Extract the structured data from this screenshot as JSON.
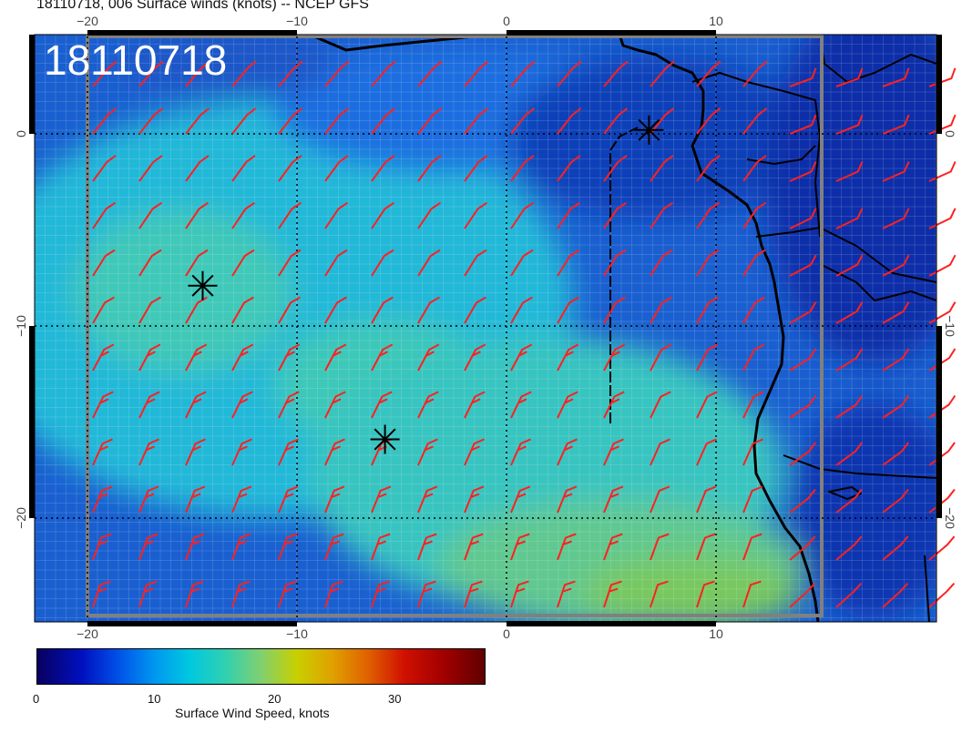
{
  "title": "18110718, 006 Surface winds (knots) -- NCEP GFS",
  "stamp": "18110718",
  "axes": {
    "x_ticks_top": [
      "−20",
      "−10",
      "0",
      "10"
    ],
    "x_ticks_bottom": [
      "−20",
      "−10",
      "0",
      "10"
    ],
    "y_ticks_left": [
      "0",
      "−10",
      "−20"
    ],
    "y_ticks_right": [
      "0",
      "−10",
      "−20"
    ]
  },
  "colorbar": {
    "label": "Surface Wind Speed, knots",
    "ticks": [
      "0",
      "10",
      "20",
      "30"
    ],
    "range": [
      0,
      37
    ]
  },
  "map": {
    "lon_range": [
      -22.5,
      20.5
    ],
    "lat_range": [
      4.5,
      -25.5
    ],
    "barb_color": "#ff2020",
    "marker_icon": "asterisk-icon",
    "markers": [
      {
        "lon": -14.5,
        "lat": -7.9
      },
      {
        "lon": -5.8,
        "lat": -15.9
      },
      {
        "lon": 6.8,
        "lat": 0.2
      }
    ]
  }
}
